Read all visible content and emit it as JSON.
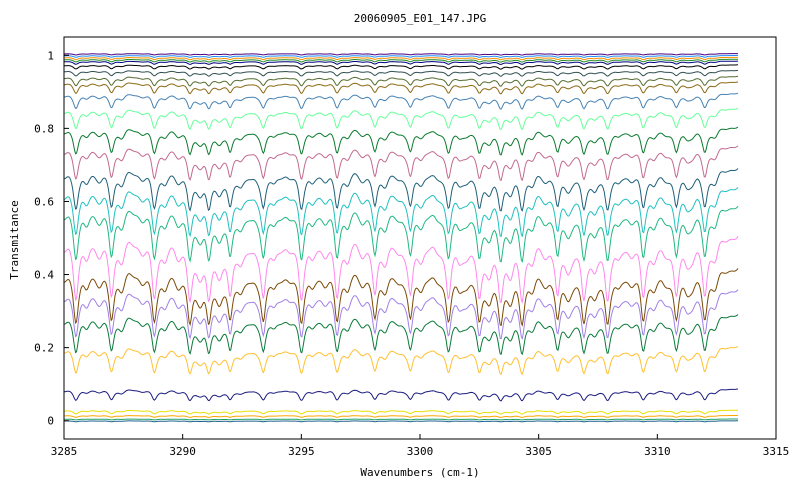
{
  "chart_data": {
    "type": "line",
    "title": "20060905_E01_147.JPG",
    "xlabel": "Wavenumbers (cm-1)",
    "ylabel": "Transmitance",
    "xlim": [
      3285,
      3315
    ],
    "ylim": [
      -0.05,
      1.05
    ],
    "data_x_range": [
      3285,
      3313.4
    ],
    "x_ticks": [
      "3285",
      "3290",
      "3295",
      "3300",
      "3305",
      "3310",
      "3315"
    ],
    "y_ticks": [
      "0",
      "0.2",
      "0.4",
      "0.6",
      "0.8",
      "1"
    ],
    "x_tick_values": [
      3285,
      3290,
      3295,
      3300,
      3305,
      3310,
      3315
    ],
    "y_tick_values": [
      0,
      0.2,
      0.4,
      0.6,
      0.8,
      1
    ],
    "grid": false,
    "legend": "none",
    "absorption_lines_cm-1": [
      3285.5,
      3287.0,
      3288.8,
      3290.3,
      3291.1,
      3292.0,
      3293.4,
      3295.0,
      3296.5,
      3298.1,
      3299.6,
      3301.2,
      3302.5,
      3303.4,
      3304.3,
      3305.8,
      3306.9,
      3307.9,
      3309.4,
      3310.8,
      3312.0
    ],
    "series": [
      {
        "baseline": 1.005,
        "color": "#4b0082"
      },
      {
        "baseline": 1.0,
        "color": "#1e90ff"
      },
      {
        "baseline": 0.995,
        "color": "#ff8c00"
      },
      {
        "baseline": 0.99,
        "color": "#228b22"
      },
      {
        "baseline": 0.985,
        "color": "#000080"
      },
      {
        "baseline": 0.975,
        "color": "#000000"
      },
      {
        "baseline": 0.96,
        "color": "#2f4f4f"
      },
      {
        "baseline": 0.945,
        "color": "#556b2f"
      },
      {
        "baseline": 0.93,
        "color": "#8b6914"
      },
      {
        "baseline": 0.9,
        "color": "#4682b4"
      },
      {
        "baseline": 0.86,
        "color": "#66ff99"
      },
      {
        "baseline": 0.81,
        "color": "#0a7a2e"
      },
      {
        "baseline": 0.76,
        "color": "#c26a8f"
      },
      {
        "baseline": 0.7,
        "color": "#1f5f7a"
      },
      {
        "baseline": 0.65,
        "color": "#20c0c0"
      },
      {
        "baseline": 0.6,
        "color": "#20b880"
      },
      {
        "baseline": 0.52,
        "color": "#ff88ee"
      },
      {
        "baseline": 0.43,
        "color": "#7a4a05"
      },
      {
        "baseline": 0.37,
        "color": "#a080e8"
      },
      {
        "baseline": 0.3,
        "color": "#0a7a3a"
      },
      {
        "baseline": 0.21,
        "color": "#ffc030"
      },
      {
        "baseline": 0.09,
        "color": "#1a1a80"
      },
      {
        "baseline": 0.03,
        "color": "#e8e000"
      },
      {
        "baseline": 0.015,
        "color": "#ffa500"
      },
      {
        "baseline": 0.005,
        "color": "#20a060"
      },
      {
        "baseline": 0.0,
        "color": "#1e6090"
      }
    ]
  }
}
